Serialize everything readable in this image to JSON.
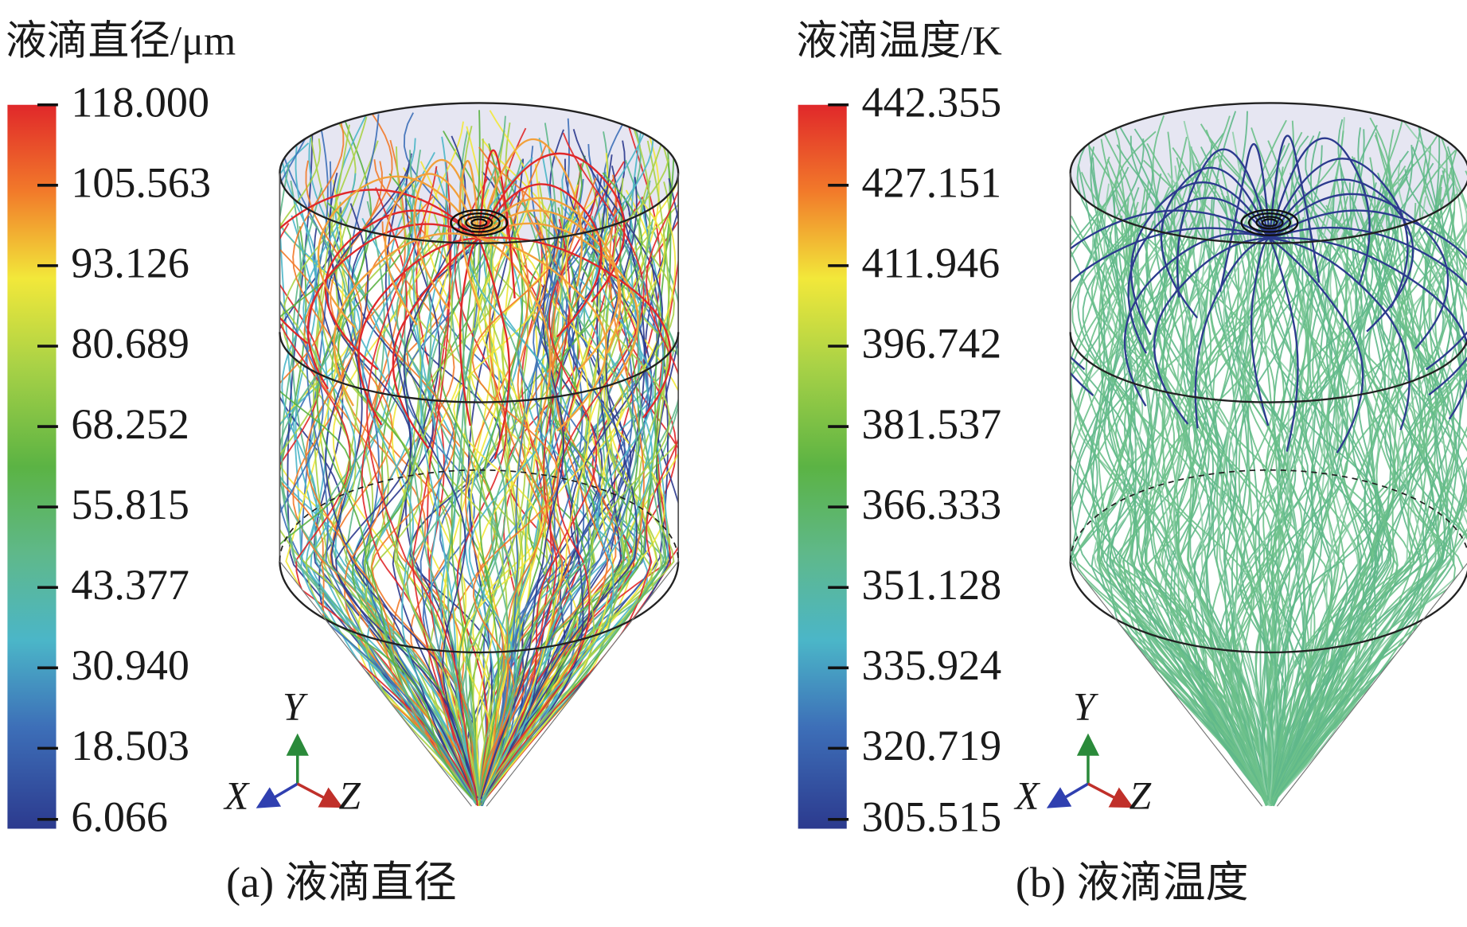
{
  "panels": [
    {
      "colorbar_title": "液滴直径/μm",
      "ticks": [
        "118.000",
        "105.563",
        "93.126",
        "80.689",
        "68.252",
        "55.815",
        "43.377",
        "30.940",
        "18.503",
        "6.066"
      ],
      "caption": "(a) 液滴直径",
      "axes": {
        "y": "Y",
        "x": "X",
        "z": "Z"
      }
    },
    {
      "colorbar_title": "液滴温度/K",
      "ticks": [
        "442.355",
        "427.151",
        "411.946",
        "396.742",
        "381.537",
        "366.333",
        "351.128",
        "335.924",
        "320.719",
        "305.515"
      ],
      "caption": "(b) 液滴温度",
      "axes": {
        "y": "Y",
        "x": "X",
        "z": "Z"
      }
    }
  ]
}
